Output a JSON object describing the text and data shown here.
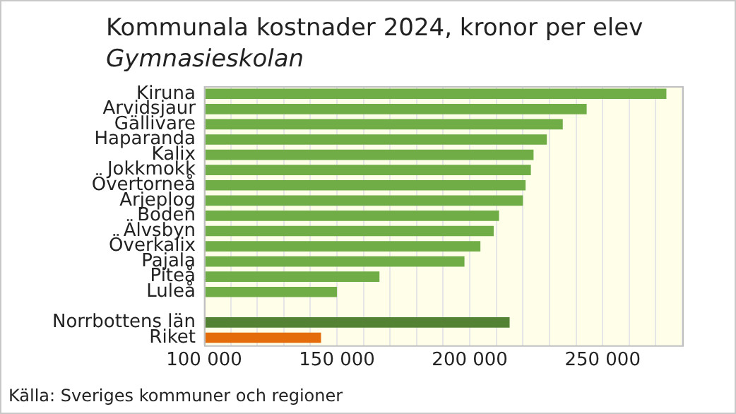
{
  "chart_data": {
    "type": "bar",
    "orientation": "horizontal",
    "title": "Kommunala kostnader 2024, kronor per elev",
    "subtitle": "Gymnasieskolan",
    "categories": [
      "Kiruna",
      "Arvidsjaur",
      "Gällivare",
      "Haparanda",
      "Kalix",
      "Jokkmokk",
      "Övertorneå",
      "Arjeplog",
      "Boden",
      "Älvsbyn",
      "Överkalix",
      "Pajala",
      "Piteå",
      "Luleå",
      null,
      "Norrbottens län",
      "Riket"
    ],
    "values": [
      274000,
      244000,
      235000,
      229000,
      224000,
      223000,
      221000,
      220000,
      211000,
      209000,
      204000,
      198000,
      166000,
      150000,
      null,
      215000,
      144000
    ],
    "colors": [
      "#70ad47",
      "#70ad47",
      "#70ad47",
      "#70ad47",
      "#70ad47",
      "#70ad47",
      "#70ad47",
      "#70ad47",
      "#70ad47",
      "#70ad47",
      "#70ad47",
      "#70ad47",
      "#70ad47",
      "#70ad47",
      "#70ad47",
      "#548235",
      "#e46c0a"
    ],
    "xlim": [
      100000,
      280000
    ],
    "xticks": [
      {
        "value": 100000,
        "label": "100 000"
      },
      {
        "value": 110000,
        "label": null
      },
      {
        "value": 120000,
        "label": null
      },
      {
        "value": 130000,
        "label": null
      },
      {
        "value": 140000,
        "label": null
      },
      {
        "value": 150000,
        "label": "150 000"
      },
      {
        "value": 160000,
        "label": null
      },
      {
        "value": 170000,
        "label": null
      },
      {
        "value": 180000,
        "label": null
      },
      {
        "value": 190000,
        "label": null
      },
      {
        "value": 200000,
        "label": "200 000"
      },
      {
        "value": 210000,
        "label": null
      },
      {
        "value": 220000,
        "label": null
      },
      {
        "value": 230000,
        "label": null
      },
      {
        "value": 240000,
        "label": null
      },
      {
        "value": 250000,
        "label": "250 000"
      },
      {
        "value": 260000,
        "label": null
      },
      {
        "value": 270000,
        "label": null
      },
      {
        "value": 280000,
        "label": null
      }
    ],
    "grid": "x",
    "legend": false,
    "annotations": [
      "Källa: Sveriges kommuner och regioner"
    ]
  }
}
